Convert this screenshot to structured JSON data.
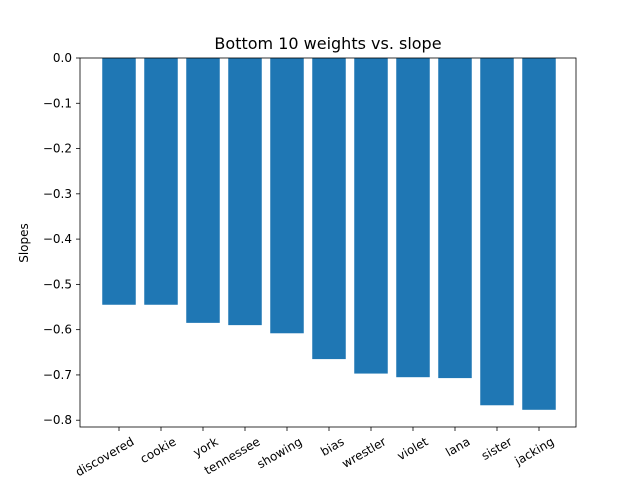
{
  "chart_data": {
    "type": "bar",
    "title": "Bottom 10 weights vs. slope",
    "xlabel": "",
    "ylabel": "Slopes",
    "categories": [
      "discovered",
      "cookie",
      "york",
      "tennessee",
      "showing",
      "bias",
      "wrestler",
      "violet",
      "lana",
      "sister",
      "jacking"
    ],
    "values": [
      -0.545,
      -0.545,
      -0.585,
      -0.59,
      -0.608,
      -0.665,
      -0.697,
      -0.705,
      -0.707,
      -0.767,
      -0.777
    ],
    "ylim": [
      -0.815,
      0.0
    ],
    "yticks": [
      "0.0",
      "−0.1",
      "−0.2",
      "−0.3",
      "−0.4",
      "−0.5",
      "−0.6",
      "−0.7",
      "−0.8"
    ],
    "bar_color": "#1f77b4",
    "grid": false,
    "legend": "none"
  }
}
